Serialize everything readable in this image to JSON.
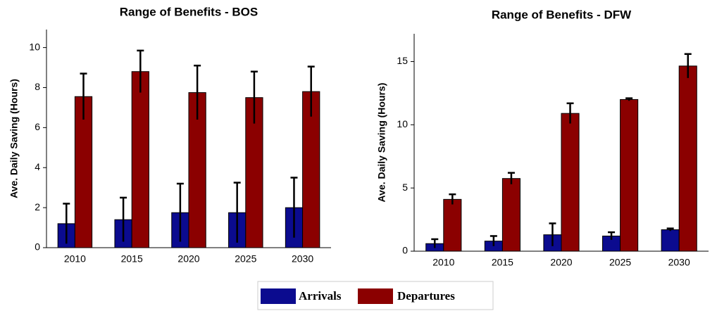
{
  "chart_data": [
    {
      "type": "bar",
      "title": "Range of Benefits - BOS",
      "y_label": "Ave. Daily Saving (Hours)",
      "categories": [
        "2010",
        "2015",
        "2020",
        "2025",
        "2030"
      ],
      "series": [
        {
          "values": [
            1.2,
            1.4,
            1.75,
            1.75,
            2.0
          ],
          "errors": [
            1.0,
            1.1,
            1.45,
            1.5,
            1.5
          ]
        },
        {
          "values": [
            7.55,
            8.8,
            7.75,
            7.5,
            7.8
          ],
          "errors": [
            1.15,
            1.05,
            1.35,
            1.3,
            1.25
          ]
        }
      ],
      "ylim": [
        0,
        10.9
      ],
      "yticks": [
        0,
        2,
        4,
        6,
        8,
        10
      ]
    },
    {
      "type": "bar",
      "title": "Range of Benefits - DFW",
      "y_label": "Ave. Daily Saving (Hours)",
      "categories": [
        "2010",
        "2015",
        "2020",
        "2025",
        "2030"
      ],
      "series": [
        {
          "values": [
            0.6,
            0.8,
            1.3,
            1.2,
            1.7
          ],
          "errors": [
            0.35,
            0.4,
            0.9,
            0.3,
            0.1
          ]
        },
        {
          "values": [
            4.1,
            5.75,
            10.9,
            12.0,
            14.65
          ],
          "errors": [
            0.4,
            0.45,
            0.8,
            0.1,
            0.95
          ]
        }
      ],
      "ylim": [
        0,
        17.2
      ],
      "yticks": [
        0,
        5,
        10,
        15
      ]
    }
  ],
  "legend": [
    {
      "name": "Arrivals",
      "color": "#0b0b8f"
    },
    {
      "name": "Departures",
      "color": "#8b0000"
    }
  ]
}
